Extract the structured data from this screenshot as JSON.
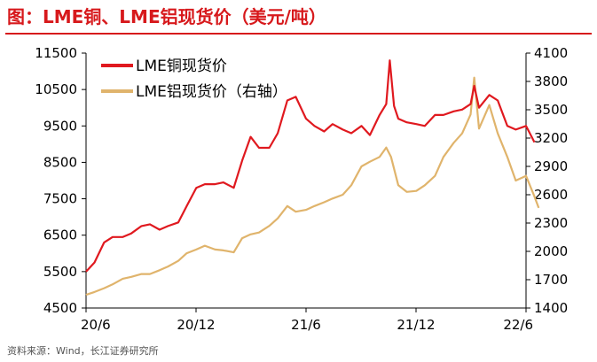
{
  "title": "图：LME铜、LME铝现货价（美元/吨）",
  "source": "资料来源：Wind，长江证券研究所",
  "chart_data": {
    "type": "line",
    "x_tick_labels": [
      "20/6",
      "20/12",
      "21/6",
      "21/12",
      "22/6"
    ],
    "x_range": [
      "2020-06",
      "2022-06"
    ],
    "y_left": {
      "min": 4500,
      "max": 11500,
      "ticks": [
        4500,
        5500,
        6500,
        7500,
        8500,
        9500,
        10500,
        11500
      ]
    },
    "y_right": {
      "min": 1400,
      "max": 4100,
      "ticks": [
        1400,
        1700,
        2000,
        2300,
        2600,
        2900,
        3200,
        3500,
        3800,
        4100
      ]
    },
    "legend_position": "top-left",
    "series": [
      {
        "name": "LME铜现货价",
        "axis": "left",
        "color": "#e0191f",
        "points": [
          [
            "2020-06",
            5500
          ],
          [
            "2020-06-15",
            5750
          ],
          [
            "2020-07",
            6300
          ],
          [
            "2020-07-15",
            6450
          ],
          [
            "2020-08",
            6450
          ],
          [
            "2020-08-15",
            6550
          ],
          [
            "2020-09",
            6750
          ],
          [
            "2020-09-15",
            6800
          ],
          [
            "2020-10",
            6650
          ],
          [
            "2020-10-15",
            6750
          ],
          [
            "2020-11",
            6850
          ],
          [
            "2020-11-15",
            7300
          ],
          [
            "2020-12",
            7800
          ],
          [
            "2020-12-15",
            7900
          ],
          [
            "2021-01",
            7900
          ],
          [
            "2021-01-15",
            7950
          ],
          [
            "2021-02",
            7800
          ],
          [
            "2021-02-15",
            8550
          ],
          [
            "2021-03",
            9200
          ],
          [
            "2021-03-15",
            8900
          ],
          [
            "2021-04",
            8900
          ],
          [
            "2021-04-15",
            9300
          ],
          [
            "2021-05",
            10200
          ],
          [
            "2021-05-15",
            10300
          ],
          [
            "2021-06",
            9700
          ],
          [
            "2021-06-15",
            9500
          ],
          [
            "2021-07",
            9350
          ],
          [
            "2021-07-15",
            9550
          ],
          [
            "2021-08",
            9400
          ],
          [
            "2021-08-15",
            9300
          ],
          [
            "2021-09",
            9500
          ],
          [
            "2021-09-15",
            9250
          ],
          [
            "2021-10",
            9800
          ],
          [
            "2021-10-12",
            10100
          ],
          [
            "2021-10-18",
            11300
          ],
          [
            "2021-10-25",
            10050
          ],
          [
            "2021-11",
            9700
          ],
          [
            "2021-11-15",
            9600
          ],
          [
            "2021-12",
            9550
          ],
          [
            "2021-12-15",
            9500
          ],
          [
            "2022-01",
            9800
          ],
          [
            "2022-01-15",
            9800
          ],
          [
            "2022-02",
            9900
          ],
          [
            "2022-02-15",
            9950
          ],
          [
            "2022-03",
            10100
          ],
          [
            "2022-03-07",
            10600
          ],
          [
            "2022-03-15",
            10000
          ],
          [
            "2022-04",
            10350
          ],
          [
            "2022-04-15",
            10200
          ],
          [
            "2022-05",
            9500
          ],
          [
            "2022-05-15",
            9400
          ],
          [
            "2022-06",
            9500
          ],
          [
            "2022-06-15",
            9050
          ]
        ]
      },
      {
        "name": "LME铝现货价（右轴）",
        "axis": "right",
        "color": "#e0b46c",
        "points": [
          [
            "2020-06",
            1540
          ],
          [
            "2020-06-15",
            1570
          ],
          [
            "2020-07",
            1610
          ],
          [
            "2020-07-15",
            1650
          ],
          [
            "2020-08",
            1710
          ],
          [
            "2020-08-15",
            1730
          ],
          [
            "2020-09",
            1760
          ],
          [
            "2020-09-15",
            1760
          ],
          [
            "2020-10",
            1800
          ],
          [
            "2020-10-15",
            1840
          ],
          [
            "2020-11",
            1900
          ],
          [
            "2020-11-15",
            1980
          ],
          [
            "2020-12",
            2020
          ],
          [
            "2020-12-15",
            2060
          ],
          [
            "2021-01",
            2020
          ],
          [
            "2021-01-15",
            2010
          ],
          [
            "2021-02",
            1990
          ],
          [
            "2021-02-15",
            2140
          ],
          [
            "2021-03",
            2180
          ],
          [
            "2021-03-15",
            2200
          ],
          [
            "2021-04",
            2270
          ],
          [
            "2021-04-15",
            2350
          ],
          [
            "2021-05",
            2480
          ],
          [
            "2021-05-15",
            2420
          ],
          [
            "2021-06",
            2440
          ],
          [
            "2021-06-15",
            2480
          ],
          [
            "2021-07",
            2520
          ],
          [
            "2021-07-15",
            2560
          ],
          [
            "2021-08",
            2600
          ],
          [
            "2021-08-15",
            2700
          ],
          [
            "2021-09",
            2900
          ],
          [
            "2021-09-15",
            2950
          ],
          [
            "2021-10",
            3000
          ],
          [
            "2021-10-12",
            3100
          ],
          [
            "2021-10-20",
            3000
          ],
          [
            "2021-11",
            2700
          ],
          [
            "2021-11-15",
            2630
          ],
          [
            "2021-12",
            2640
          ],
          [
            "2021-12-15",
            2700
          ],
          [
            "2022-01",
            2800
          ],
          [
            "2022-01-15",
            3000
          ],
          [
            "2022-02",
            3150
          ],
          [
            "2022-02-15",
            3250
          ],
          [
            "2022-03",
            3450
          ],
          [
            "2022-03-07",
            3840
          ],
          [
            "2022-03-15",
            3300
          ],
          [
            "2022-04",
            3550
          ],
          [
            "2022-04-15",
            3250
          ],
          [
            "2022-05",
            3000
          ],
          [
            "2022-05-15",
            2750
          ],
          [
            "2022-06",
            2800
          ],
          [
            "2022-06-15",
            2580
          ],
          [
            "2022-06-22",
            2460
          ]
        ]
      }
    ]
  }
}
